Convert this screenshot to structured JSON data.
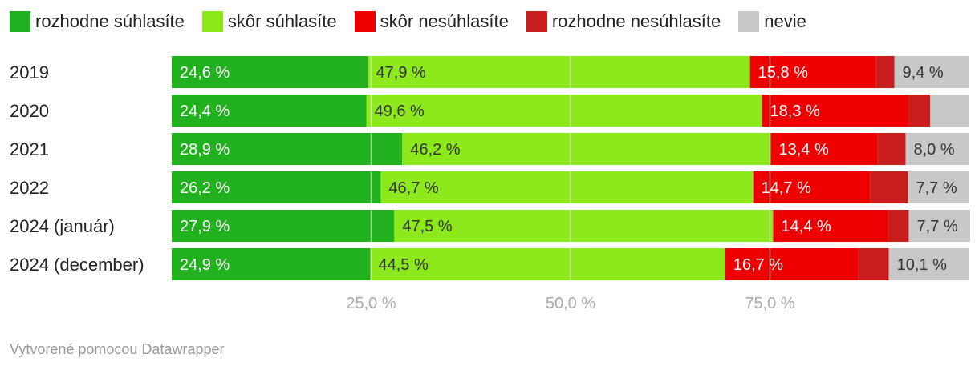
{
  "chart_data": {
    "type": "bar",
    "orientation": "horizontal",
    "stacked": true,
    "categories": [
      "2019",
      "2020",
      "2021",
      "2022",
      "2024 (január)",
      "2024 (december)"
    ],
    "series": [
      {
        "name": "rozhodne súhlasíte",
        "color": "#22b11e",
        "values": [
          24.6,
          24.4,
          28.9,
          26.2,
          27.9,
          24.9
        ],
        "labels": [
          "24,6 %",
          "24,4 %",
          "28,9 %",
          "26,2 %",
          "27,9 %",
          "24,9 %"
        ]
      },
      {
        "name": "skôr súhlasíte",
        "color": "#8de81c",
        "values": [
          47.9,
          49.6,
          46.2,
          46.7,
          47.5,
          44.5
        ],
        "labels": [
          "47,9 %",
          "49,6 %",
          "46,2 %",
          "46,7 %",
          "47,5 %",
          "44,5 %"
        ]
      },
      {
        "name": "skôr nesúhlasíte",
        "color": "#ee0000",
        "values": [
          15.8,
          18.3,
          13.4,
          14.7,
          14.4,
          16.7
        ],
        "labels": [
          "15,8 %",
          "18,3 %",
          "13,4 %",
          "14,7 %",
          "14,4 %",
          "16,7 %"
        ]
      },
      {
        "name": "rozhodne nesúhlasíte",
        "color": "#c81e1e",
        "values": [
          2.3,
          2.8,
          3.5,
          4.7,
          2.6,
          3.8
        ],
        "labels": [
          "",
          "",
          "",
          "",
          "",
          ""
        ]
      },
      {
        "name": "nevie",
        "color": "#c8c8c8",
        "values": [
          9.4,
          4.9,
          8.0,
          7.7,
          7.7,
          10.1
        ],
        "labels": [
          "9,4 %",
          "",
          "8,0 %",
          "7,7 %",
          "7,7 %",
          "10,1 %"
        ]
      }
    ],
    "x_ticks": [
      25,
      50,
      75
    ],
    "x_tick_labels": [
      "25,0 %",
      "50,0 %",
      "75,0 %"
    ],
    "xlim": [
      0,
      100
    ],
    "legend_position": "top",
    "grid": true
  },
  "credit": "Vytvorené pomocou Datawrapper"
}
